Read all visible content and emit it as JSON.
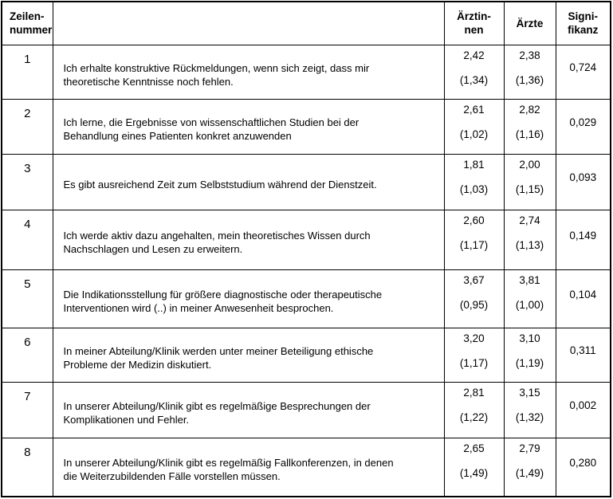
{
  "table": {
    "headers": {
      "row_number": "Zeilen-\nnummer",
      "statement": "",
      "aerztinnen": "Ärztin-\nnen",
      "aerzte": "Ärzte",
      "signifikanz": "Signi-\nfikanz"
    },
    "rows": [
      {
        "number": "1",
        "statement": "Ich erhalte konstruktive Rückmeldungen, wenn sich zeigt, dass mir\ntheoretische Kenntnisse noch fehlen.",
        "aerztinnen_mean": "2,42",
        "aerztinnen_sd": "(1,34)",
        "aerzte_mean": "2,38",
        "aerzte_sd": "(1,36)",
        "signifikanz": "0,724"
      },
      {
        "number": "2",
        "statement": "Ich lerne, die Ergebnisse von wissenschaftlichen Studien bei der\nBehandlung eines Patienten konkret anzuwenden",
        "aerztinnen_mean": "2,61",
        "aerztinnen_sd": "(1,02)",
        "aerzte_mean": "2,82",
        "aerzte_sd": "(1,16)",
        "signifikanz": "0,029"
      },
      {
        "number": "3",
        "statement": "Es gibt ausreichend Zeit zum Selbststudium während der Dienstzeit.",
        "aerztinnen_mean": "1,81",
        "aerztinnen_sd": "(1,03)",
        "aerzte_mean": "2,00",
        "aerzte_sd": "(1,15)",
        "signifikanz": "0,093"
      },
      {
        "number": "4",
        "statement": "Ich werde aktiv dazu angehalten, mein theoretisches Wissen durch\nNachschlagen und Lesen zu erweitern.",
        "aerztinnen_mean": "2,60",
        "aerztinnen_sd": "(1,17)",
        "aerzte_mean": "2,74",
        "aerzte_sd": "(1,13)",
        "signifikanz": "0,149"
      },
      {
        "number": "5",
        "statement": "Die Indikationsstellung für größere diagnostische oder therapeutische\nInterventionen wird (..) in meiner Anwesenheit besprochen.",
        "aerztinnen_mean": "3,67",
        "aerztinnen_sd": "(0,95)",
        "aerzte_mean": "3,81",
        "aerzte_sd": "(1,00)",
        "signifikanz": "0,104"
      },
      {
        "number": "6",
        "statement": "In meiner Abteilung/Klinik werden unter meiner Beteiligung ethische\nProbleme der Medizin diskutiert.",
        "aerztinnen_mean": "3,20",
        "aerztinnen_sd": "(1,17)",
        "aerzte_mean": "3,10",
        "aerzte_sd": "(1,19)",
        "signifikanz": "0,311"
      },
      {
        "number": "7",
        "statement": "In unserer Abteilung/Klinik gibt es regelmäßige Besprechungen der\nKomplikationen und Fehler.",
        "aerztinnen_mean": "2,81",
        "aerztinnen_sd": "(1,22)",
        "aerzte_mean": "3,15",
        "aerzte_sd": "(1,32)",
        "signifikanz": "0,002"
      },
      {
        "number": "8",
        "statement": "In unserer Abteilung/Klinik gibt es regelmäßig Fallkonferenzen, in denen\ndie Weiterzubildenden Fälle vorstellen müssen.",
        "aerztinnen_mean": "2,65",
        "aerztinnen_sd": "(1,49)",
        "aerzte_mean": "2,79",
        "aerzte_sd": "(1,49)",
        "signifikanz": "0,280"
      }
    ]
  }
}
